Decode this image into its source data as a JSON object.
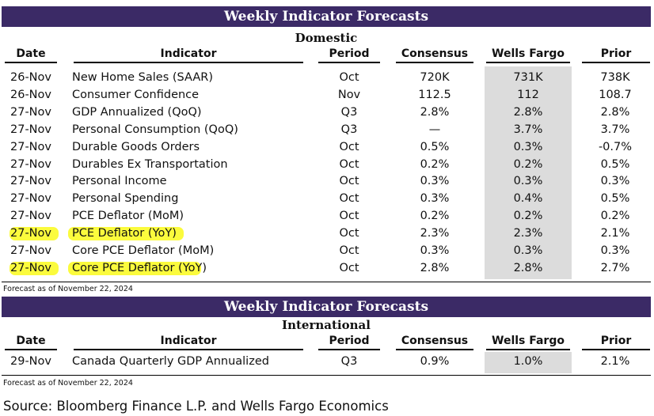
{
  "domestic": {
    "banner": "Weekly Indicator Forecasts",
    "section": "Domestic",
    "headers": [
      "Date",
      "Indicator",
      "Period",
      "Consensus",
      "Wells Fargo",
      "Prior"
    ],
    "rows": [
      {
        "date": "26-Nov",
        "indicator": "New Home Sales (SAAR)",
        "period": "Oct",
        "consensus": "720K",
        "wells_fargo": "731K",
        "prior": "738K",
        "highlight": false
      },
      {
        "date": "26-Nov",
        "indicator": "Consumer Confidence",
        "period": "Nov",
        "consensus": "112.5",
        "wells_fargo": "112",
        "prior": "108.7",
        "highlight": false
      },
      {
        "date": "27-Nov",
        "indicator": "GDP Annualized (QoQ)",
        "period": "Q3",
        "consensus": "2.8%",
        "wells_fargo": "2.8%",
        "prior": "2.8%",
        "highlight": false
      },
      {
        "date": "27-Nov",
        "indicator": "Personal Consumption (QoQ)",
        "period": "Q3",
        "consensus": "—",
        "wells_fargo": "3.7%",
        "prior": "3.7%",
        "highlight": false
      },
      {
        "date": "27-Nov",
        "indicator": "Durable Goods Orders",
        "period": "Oct",
        "consensus": "0.5%",
        "wells_fargo": "0.3%",
        "prior": "-0.7%",
        "highlight": false
      },
      {
        "date": "27-Nov",
        "indicator": "Durables Ex Transportation",
        "period": "Oct",
        "consensus": "0.2%",
        "wells_fargo": "0.2%",
        "prior": "0.5%",
        "highlight": false
      },
      {
        "date": "27-Nov",
        "indicator": "Personal Income",
        "period": "Oct",
        "consensus": "0.3%",
        "wells_fargo": "0.3%",
        "prior": "0.3%",
        "highlight": false
      },
      {
        "date": "27-Nov",
        "indicator": "Personal Spending",
        "period": "Oct",
        "consensus": "0.3%",
        "wells_fargo": "0.4%",
        "prior": "0.5%",
        "highlight": false
      },
      {
        "date": "27-Nov",
        "indicator": "PCE Deflator (MoM)",
        "period": "Oct",
        "consensus": "0.2%",
        "wells_fargo": "0.2%",
        "prior": "0.2%",
        "highlight": false
      },
      {
        "date": "27-Nov",
        "indicator": "PCE Deflator (YoY)",
        "period": "Oct",
        "consensus": "2.3%",
        "wells_fargo": "2.3%",
        "prior": "2.1%",
        "highlight": true
      },
      {
        "date": "27-Nov",
        "indicator": "Core PCE Deflator (MoM)",
        "period": "Oct",
        "consensus": "0.3%",
        "wells_fargo": "0.3%",
        "prior": "0.3%",
        "highlight": false
      },
      {
        "date": "27-Nov",
        "indicator": "Core PCE Deflator (YoY)",
        "period": "Oct",
        "consensus": "2.8%",
        "wells_fargo": "2.8%",
        "prior": "2.7%",
        "highlight": true
      }
    ],
    "note": "Forecast as of November 22, 2024"
  },
  "international": {
    "banner": "Weekly Indicator Forecasts",
    "section": "International",
    "headers": [
      "Date",
      "Indicator",
      "Period",
      "Consensus",
      "Wells Fargo",
      "Prior"
    ],
    "rows": [
      {
        "date": "29-Nov",
        "indicator": "Canada Quarterly GDP Annualized",
        "period": "Q3",
        "consensus": "0.9%",
        "wells_fargo": "1.0%",
        "prior": "2.1%",
        "highlight": false
      }
    ],
    "note": "Forecast as of November 22, 2024"
  },
  "source": "Source: Bloomberg Finance L.P. and Wells Fargo Economics",
  "colors": {
    "banner": "#3b2a66",
    "wells_fargo_column": "#dcdcdc",
    "highlight": "#fbfb33"
  }
}
